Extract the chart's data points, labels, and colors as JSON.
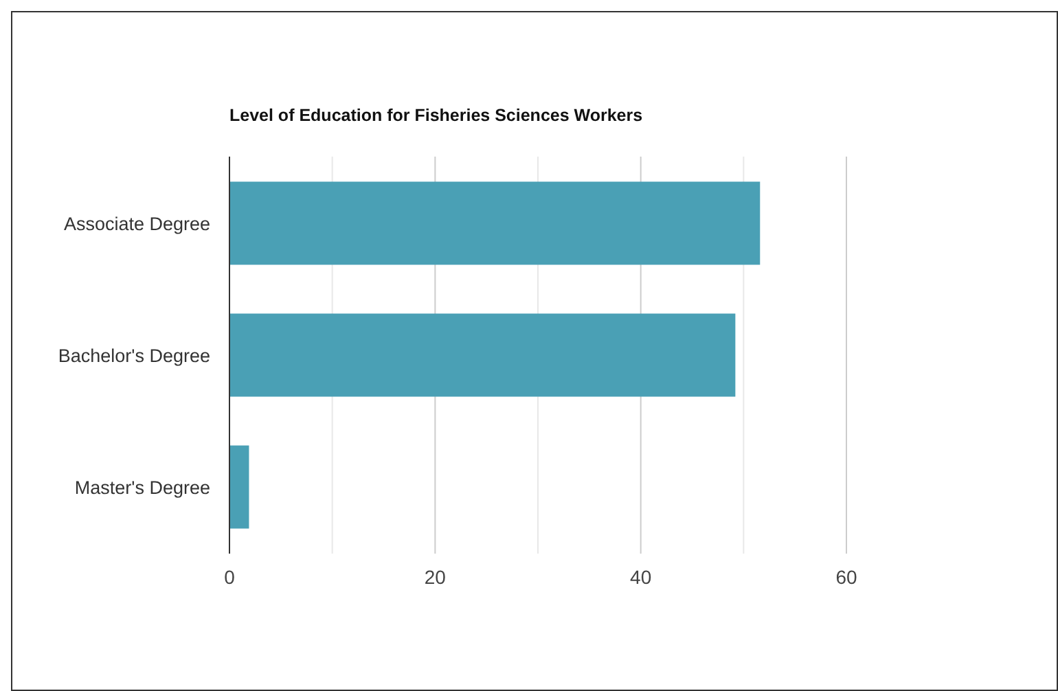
{
  "chart_data": {
    "type": "bar",
    "orientation": "horizontal",
    "title": "Level of Education for Fisheries Sciences Workers",
    "categories": [
      "Associate Degree",
      "Bachelor's Degree",
      "Master's Degree"
    ],
    "values": [
      51.6,
      49.2,
      1.9
    ],
    "color": "#4aa0b5",
    "xlim": [
      0,
      60
    ],
    "xticks": [
      0,
      {
        "value": 10,
        "label": null
      },
      20,
      {
        "value": 30,
        "label": null
      },
      40,
      {
        "value": 50,
        "label": null
      },
      60
    ],
    "grid": "x"
  }
}
